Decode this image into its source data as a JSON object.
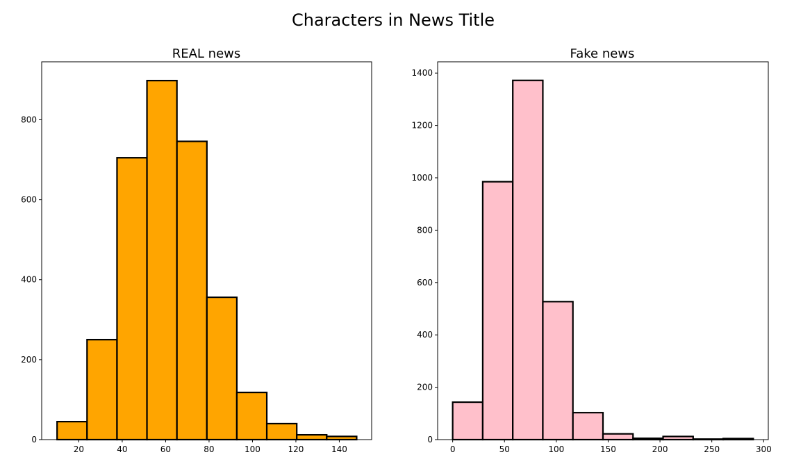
{
  "figure": {
    "title": "Characters in News Title"
  },
  "chart_data": [
    {
      "type": "bar",
      "title": "REAL news",
      "xlabel": "",
      "ylabel": "",
      "color": "#FFA500",
      "edgecolor": "#000000",
      "xlim": [
        2.9,
        154.9
      ],
      "ylim": [
        0,
        945
      ],
      "xticks": [
        20,
        40,
        60,
        80,
        100,
        120,
        140
      ],
      "yticks": [
        0,
        200,
        400,
        600,
        800
      ],
      "bin_edges": [
        10,
        23.8,
        37.6,
        51.4,
        65.2,
        79.0,
        92.8,
        106.6,
        120.4,
        134.2,
        148.0
      ],
      "values": [
        45,
        250,
        705,
        898,
        746,
        356,
        118,
        40,
        12,
        8
      ]
    },
    {
      "type": "bar",
      "title": "Fake news",
      "xlabel": "",
      "ylabel": "",
      "color": "#FFC0CB",
      "edgecolor": "#000000",
      "xlim": [
        -14.5,
        304.5
      ],
      "ylim": [
        0,
        1443
      ],
      "xticks": [
        0,
        50,
        100,
        150,
        200,
        250,
        300
      ],
      "yticks": [
        0,
        200,
        400,
        600,
        800,
        1000,
        1200,
        1400
      ],
      "bin_edges": [
        0,
        29,
        58,
        87,
        116,
        145,
        174,
        203,
        232,
        261,
        290
      ],
      "values": [
        143,
        985,
        1372,
        527,
        103,
        22,
        5,
        12,
        2,
        4
      ]
    }
  ]
}
